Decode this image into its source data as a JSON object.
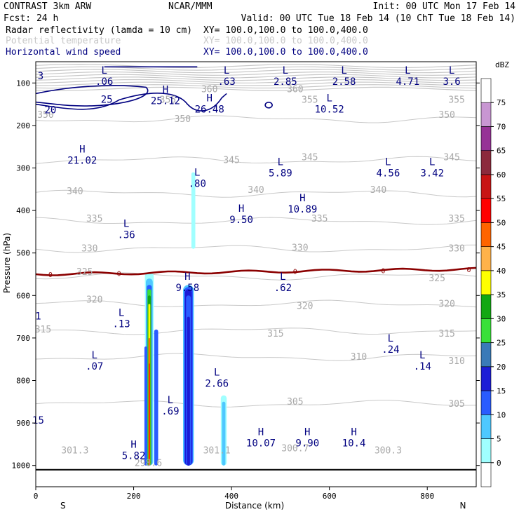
{
  "header": {
    "left1": "CONTRAST   3km ARW",
    "center1": "NCAR/MMM",
    "right1": "Init: 00 UTC Mon 17 Feb 14",
    "left2": "Fcst:    24 h",
    "right2": "Valid: 00 UTC Tue 18 Feb 14 (10 ChT Tue 18 Feb 14)"
  },
  "legend_lines": [
    {
      "label": "Radar reflectivity (lamda = 10 cm)",
      "xy": "XY= 100.0,100.0 to 100.0,400.0",
      "color": "#000080"
    },
    {
      "label": "Potential temperature",
      "xy": "XY= 100.0,100.0 to 100.0,400.0",
      "color": "#c8c8c8"
    },
    {
      "label": "Horizontal wind speed",
      "xy": "XY= 100.0,100.0 to 100.0,400.0",
      "color": "#000080"
    }
  ],
  "chart_data": {
    "type": "heatmap",
    "xlabel": "Distance (km)",
    "ylabel": "Pressure (hPa)",
    "xlim": [
      0,
      900
    ],
    "ylim": [
      1050,
      50
    ],
    "xticks": [
      0,
      200,
      400,
      600,
      800
    ],
    "yticks": [
      100,
      200,
      300,
      400,
      500,
      600,
      700,
      800,
      900,
      1000
    ],
    "x_end_labels": {
      "left": "S",
      "right": "N"
    },
    "colorbar": {
      "title": "dBZ",
      "levels": [
        0,
        5,
        10,
        15,
        20,
        25,
        30,
        35,
        40,
        45,
        50,
        55,
        60,
        65,
        70,
        75
      ],
      "colors": [
        "#ffffff",
        "#a0ffff",
        "#4ec8ff",
        "#2a5cff",
        "#1c1cd6",
        "#3a7ab8",
        "#38e038",
        "#12a812",
        "#ffff00",
        "#ffb24a",
        "#ff6400",
        "#ff0000",
        "#c81414",
        "#8c2a3c",
        "#963296",
        "#c896d2",
        "#ffffff"
      ]
    },
    "theta_contours": [
      {
        "value": "350",
        "p": 185
      },
      {
        "value": "345",
        "p": 282
      },
      {
        "value": "340",
        "p": 360
      },
      {
        "value": "335",
        "p": 425
      },
      {
        "value": "330",
        "p": 490
      },
      {
        "value": "325",
        "p": 555
      },
      {
        "value": "320",
        "p": 620
      },
      {
        "value": "315",
        "p": 683
      },
      {
        "value": "310",
        "p": 745
      },
      {
        "value": "305",
        "p": 855
      }
    ],
    "theta_labels": [
      {
        "text": "360",
        "x": 355,
        "p": 115
      },
      {
        "text": "360",
        "x": 530,
        "p": 115
      },
      {
        "text": "355",
        "x": 270,
        "p": 140
      },
      {
        "text": "355",
        "x": 560,
        "p": 140
      },
      {
        "text": "355",
        "x": 860,
        "p": 140
      },
      {
        "text": "350",
        "x": 300,
        "p": 185
      },
      {
        "text": "350",
        "x": 20,
        "p": 175
      },
      {
        "text": "350",
        "x": 840,
        "p": 175
      },
      {
        "text": "345",
        "x": 400,
        "p": 282
      },
      {
        "text": "345",
        "x": 560,
        "p": 275
      },
      {
        "text": "345",
        "x": 850,
        "p": 275
      },
      {
        "text": "340",
        "x": 80,
        "p": 355
      },
      {
        "text": "340",
        "x": 450,
        "p": 352
      },
      {
        "text": "340",
        "x": 700,
        "p": 352
      },
      {
        "text": "335",
        "x": 120,
        "p": 420
      },
      {
        "text": "335",
        "x": 580,
        "p": 420
      },
      {
        "text": "335",
        "x": 860,
        "p": 420
      },
      {
        "text": "330",
        "x": 110,
        "p": 490
      },
      {
        "text": "330",
        "x": 540,
        "p": 488
      },
      {
        "text": "330",
        "x": 860,
        "p": 490
      },
      {
        "text": "325",
        "x": 100,
        "p": 545
      },
      {
        "text": "325",
        "x": 820,
        "p": 560
      },
      {
        "text": "320",
        "x": 120,
        "p": 610
      },
      {
        "text": "320",
        "x": 550,
        "p": 625
      },
      {
        "text": "320",
        "x": 840,
        "p": 620
      },
      {
        "text": "315",
        "x": 15,
        "p": 680
      },
      {
        "text": "315",
        "x": 490,
        "p": 690
      },
      {
        "text": "315",
        "x": 840,
        "p": 690
      },
      {
        "text": "310",
        "x": 660,
        "p": 745
      },
      {
        "text": "310",
        "x": 860,
        "p": 755
      },
      {
        "text": "305",
        "x": 530,
        "p": 850
      },
      {
        "text": "305",
        "x": 860,
        "p": 855
      },
      {
        "text": "301.3",
        "x": 80,
        "p": 965
      },
      {
        "text": "301.1",
        "x": 370,
        "p": 965
      },
      {
        "text": "300.7",
        "x": 530,
        "p": 960
      },
      {
        "text": "300.3",
        "x": 720,
        "p": 965
      },
      {
        "text": "298.6",
        "x": 230,
        "p": 995
      }
    ],
    "zero_line": {
      "label": "0",
      "p": 550
    },
    "reflectivity_labels": [
      {
        "text": "25",
        "x": 145,
        "p": 140
      },
      {
        "text": "20",
        "x": 30,
        "p": 165
      },
      {
        "text": "3",
        "x": 10,
        "p": 85
      }
    ],
    "wind_extrema": [
      {
        "kind": "L",
        "value": ".06",
        "x": 140,
        "p": 85
      },
      {
        "kind": "L",
        "value": ".63",
        "x": 390,
        "p": 85
      },
      {
        "kind": "L",
        "value": "2.85",
        "x": 510,
        "p": 85
      },
      {
        "kind": "L",
        "value": "2.58",
        "x": 630,
        "p": 85
      },
      {
        "kind": "L",
        "value": "4.71",
        "x": 760,
        "p": 85
      },
      {
        "kind": "L",
        "value": "3.6",
        "x": 850,
        "p": 85
      },
      {
        "kind": "H",
        "value": "25.12",
        "x": 265,
        "p": 130
      },
      {
        "kind": "H",
        "value": "26.48",
        "x": 355,
        "p": 150
      },
      {
        "kind": "L",
        "value": "10.52",
        "x": 600,
        "p": 150
      },
      {
        "kind": "H",
        "value": "21.02",
        "x": 95,
        "p": 270
      },
      {
        "kind": "L",
        "value": ".80",
        "x": 330,
        "p": 325
      },
      {
        "kind": "L",
        "value": "5.89",
        "x": 500,
        "p": 300
      },
      {
        "kind": "L",
        "value": "4.56",
        "x": 720,
        "p": 300
      },
      {
        "kind": "L",
        "value": "3.42",
        "x": 810,
        "p": 300
      },
      {
        "kind": "H",
        "value": "10.89",
        "x": 545,
        "p": 385
      },
      {
        "kind": "H",
        "value": "9.50",
        "x": 420,
        "p": 410
      },
      {
        "kind": "L",
        "value": ".36",
        "x": 185,
        "p": 445
      },
      {
        "kind": "H",
        "value": "9.58",
        "x": 310,
        "p": 570
      },
      {
        "kind": "L",
        "value": ".62",
        "x": 505,
        "p": 570
      },
      {
        "kind": "L",
        "value": ".13",
        "x": 175,
        "p": 655
      },
      {
        "kind": "L",
        "value": ".24",
        "x": 725,
        "p": 715
      },
      {
        "kind": "L",
        "value": ".07",
        "x": 120,
        "p": 755
      },
      {
        "kind": "L",
        "value": ".14",
        "x": 790,
        "p": 755
      },
      {
        "kind": "L",
        "value": "2.66",
        "x": 370,
        "p": 795
      },
      {
        "kind": "L",
        "value": ".69",
        "x": 275,
        "p": 860
      },
      {
        "kind": "H",
        "value": "10.07",
        "x": 460,
        "p": 935
      },
      {
        "kind": "H",
        "value": "9.90",
        "x": 555,
        "p": 935
      },
      {
        "kind": "H",
        "value": "10.4",
        "x": 650,
        "p": 935
      },
      {
        "kind": "H",
        "value": "5.82",
        "x": 200,
        "p": 965
      }
    ],
    "left_edge_labels": [
      {
        "text": "1",
        "x": 5,
        "p": 650
      },
      {
        "text": "15",
        "x": 5,
        "p": 895
      }
    ]
  }
}
